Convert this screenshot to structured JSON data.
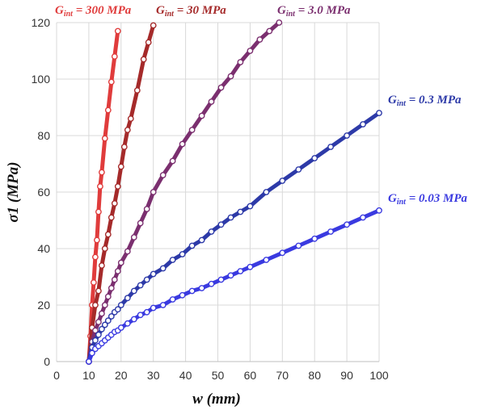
{
  "chart_data": {
    "type": "line",
    "xlabel": "w (mm)",
    "ylabel": "σ1 (MPa)",
    "xlim": [
      0,
      100
    ],
    "ylim": [
      0,
      120
    ],
    "x_ticks": [
      "0",
      "10",
      "20",
      "30",
      "40",
      "50",
      "60",
      "70",
      "80",
      "90",
      "100"
    ],
    "y_ticks": [
      "0",
      "20",
      "40",
      "60",
      "80",
      "100",
      "120"
    ],
    "grid": true,
    "legend": "inline labels",
    "series": [
      {
        "name": "Gint = 300 MPa",
        "label_parts": [
          "G",
          "int",
          " = 300 MPa"
        ],
        "color": "#e03c3c",
        "x": [
          10.0,
          10.5,
          11.0,
          11.5,
          12.0,
          12.5,
          13.0,
          13.5,
          14.0,
          15.0,
          16.0,
          17.0,
          18.0,
          19.0
        ],
        "y": [
          0.0,
          9.0,
          20.0,
          28.0,
          37.0,
          43.0,
          53.0,
          62.0,
          67.0,
          79.0,
          89.0,
          99.0,
          108.0,
          117.0
        ]
      },
      {
        "name": "Gint = 30 MPa",
        "label_parts": [
          "G",
          "int",
          " = 30 MPa"
        ],
        "color": "#a52a2a",
        "x": [
          10.0,
          11.0,
          12.0,
          13.0,
          14.0,
          15.0,
          16.0,
          17.0,
          18.0,
          19.0,
          20.0,
          21.0,
          22.0,
          23.0,
          25.0,
          27.0,
          28.5,
          30.0
        ],
        "y": [
          0.0,
          12.0,
          20.0,
          25.0,
          34.0,
          40.0,
          45.0,
          51.0,
          56.0,
          62.0,
          69.0,
          76.0,
          82.0,
          86.0,
          96.0,
          107.0,
          113.0,
          119.0
        ]
      },
      {
        "name": "Gint = 3.0 MPa",
        "label_parts": [
          "G",
          "int",
          " = 3.0 MPa"
        ],
        "color": "#7b2f6f",
        "x": [
          10.0,
          11.0,
          12.0,
          13.0,
          14.0,
          15.0,
          16.0,
          17.0,
          18.0,
          19.0,
          20.0,
          22.0,
          24.0,
          26.0,
          28.0,
          30.0,
          33.0,
          36.0,
          39.0,
          42.0,
          45.0,
          48.0,
          51.0,
          54.0,
          57.0,
          60.0,
          63.0,
          66.0,
          69.0
        ],
        "y": [
          0.0,
          7.0,
          11.0,
          14.0,
          17.0,
          20.0,
          23.0,
          26.0,
          29.0,
          32.0,
          35.0,
          39.0,
          44.0,
          49.0,
          54.0,
          60.0,
          66.0,
          71.0,
          77.0,
          82.0,
          87.0,
          92.0,
          97.0,
          101.0,
          106.0,
          110.0,
          114.0,
          117.0,
          120.0
        ]
      },
      {
        "name": "Gint = 0.3 MPa",
        "label_parts": [
          "G",
          "int",
          " = 0.3 MPa"
        ],
        "color": "#2d3aa8",
        "x": [
          10.0,
          11.0,
          12.0,
          13.0,
          14.0,
          15.0,
          16.0,
          17.0,
          18.0,
          19.0,
          20.0,
          22.0,
          24.0,
          26.0,
          28.0,
          30.0,
          33.0,
          36.0,
          39.0,
          42.0,
          45.0,
          48.0,
          51.0,
          54.0,
          57.0,
          60.0,
          65.0,
          70.0,
          75.0,
          80.0,
          85.0,
          90.0,
          95.0,
          100.0
        ],
        "y": [
          0.0,
          5.0,
          7.5,
          9.5,
          11.5,
          13.0,
          14.5,
          16.0,
          17.5,
          18.5,
          20.0,
          22.5,
          25.0,
          27.0,
          29.0,
          31.0,
          33.0,
          36.0,
          38.0,
          41.0,
          43.0,
          46.0,
          48.5,
          51.0,
          53.0,
          55.0,
          60.0,
          64.0,
          68.0,
          72.0,
          76.0,
          80.0,
          84.0,
          88.0
        ]
      },
      {
        "name": "Gint = 0.03 MPa",
        "label_parts": [
          "G",
          "int",
          " = 0.03 MPa"
        ],
        "color": "#3a3ae0",
        "x": [
          10.0,
          11.0,
          12.0,
          13.0,
          14.0,
          15.0,
          16.0,
          17.0,
          18.0,
          19.0,
          20.0,
          22.0,
          24.0,
          26.0,
          28.0,
          30.0,
          33.0,
          36.0,
          39.0,
          42.0,
          45.0,
          48.0,
          51.0,
          54.0,
          57.0,
          60.0,
          65.0,
          70.0,
          75.0,
          80.0,
          85.0,
          90.0,
          95.0,
          100.0
        ],
        "y": [
          0.0,
          3.0,
          4.5,
          5.5,
          6.5,
          7.5,
          8.5,
          9.5,
          10.5,
          11.0,
          12.0,
          13.5,
          15.0,
          16.5,
          17.5,
          19.0,
          20.0,
          22.0,
          23.5,
          25.0,
          26.0,
          27.5,
          29.0,
          30.5,
          32.0,
          33.5,
          36.0,
          38.5,
          41.0,
          43.5,
          46.0,
          48.5,
          51.0,
          53.5
        ]
      }
    ]
  }
}
